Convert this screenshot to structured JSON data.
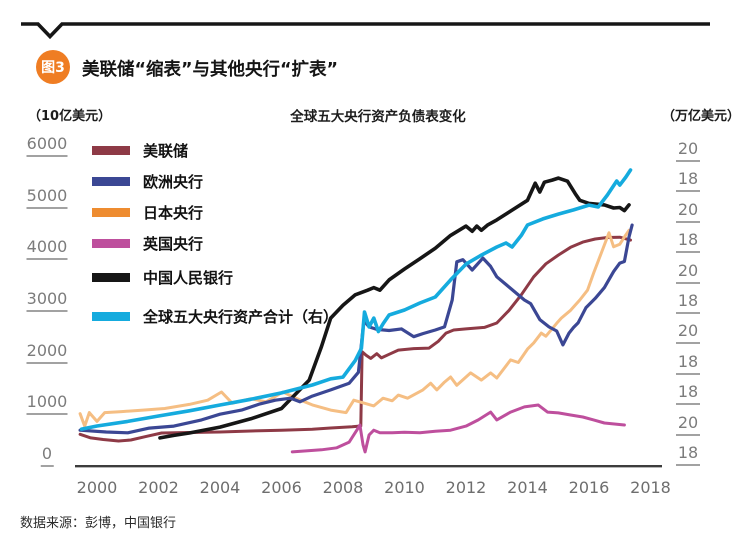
{
  "header": {
    "badge": "图3",
    "title": "美联储“缩表”与其他央行“扩表”"
  },
  "source": "数据来源：彭博，中国银行",
  "colors": {
    "badge_orange": "#EF7D23",
    "rule_black": "#161616",
    "axis_line": "#3c3c3c",
    "axis_text": "#7c7c7c",
    "xaxis_text": "#6e6e6e",
    "tick_underline": "#a2a2a2"
  },
  "chart_data": {
    "type": "line",
    "title": "全球五大央行资产负债表变化",
    "left_axis": {
      "unit": "（10亿美元）",
      "ticks": [
        6000,
        5000,
        4000,
        3000,
        2000,
        1000,
        0
      ],
      "range": [
        0,
        6000
      ]
    },
    "right_axis": {
      "unit": "（万亿美元）",
      "tick_labels": [
        "20",
        "18",
        "20",
        "18",
        "20",
        "18",
        "20",
        "18",
        "18",
        "20",
        "18"
      ],
      "range": [
        0,
        20
      ]
    },
    "x_axis": {
      "ticks": [
        2000,
        2002,
        2004,
        2006,
        2008,
        2010,
        2012,
        2014,
        2016,
        2018
      ],
      "range": [
        1999.4,
        2018.5
      ]
    },
    "grid": false,
    "legend_position": "upper-left",
    "series": [
      {
        "name": "美联储",
        "color": "#8E3A46",
        "legend_color": "#8E3A46",
        "axis": "left",
        "width": 3,
        "points": [
          [
            1999.45,
            400
          ],
          [
            1999.8,
            330
          ],
          [
            2000.2,
            300
          ],
          [
            2000.7,
            271
          ],
          [
            2001.1,
            290
          ],
          [
            2001.6,
            360
          ],
          [
            2002.1,
            425
          ],
          [
            2003,
            435
          ],
          [
            2004,
            445
          ],
          [
            2005,
            464
          ],
          [
            2006,
            480
          ],
          [
            2007,
            500
          ],
          [
            2007.6,
            522
          ],
          [
            2008.3,
            545
          ],
          [
            2008.58,
            561
          ],
          [
            2008.62,
            2000
          ],
          [
            2008.75,
            1930
          ],
          [
            2008.9,
            1870
          ],
          [
            2009.1,
            1960
          ],
          [
            2009.25,
            1880
          ],
          [
            2009.5,
            1950
          ],
          [
            2009.8,
            2030
          ],
          [
            2010.3,
            2060
          ],
          [
            2010.8,
            2070
          ],
          [
            2011.1,
            2200
          ],
          [
            2011.35,
            2360
          ],
          [
            2011.6,
            2420
          ],
          [
            2012,
            2440
          ],
          [
            2012.6,
            2470
          ],
          [
            2013,
            2555
          ],
          [
            2013.4,
            2800
          ],
          [
            2013.8,
            3100
          ],
          [
            2014.2,
            3450
          ],
          [
            2014.6,
            3700
          ],
          [
            2015,
            3870
          ],
          [
            2015.4,
            4020
          ],
          [
            2015.8,
            4120
          ],
          [
            2016.2,
            4180
          ],
          [
            2016.6,
            4210
          ],
          [
            2017,
            4215
          ],
          [
            2017.35,
            4160
          ]
        ]
      },
      {
        "name": "欧洲央行",
        "color": "#3B4794",
        "legend_color": "#3B4794",
        "axis": "left",
        "width": 3.2,
        "points": [
          [
            1999.45,
            480
          ],
          [
            2000.3,
            445
          ],
          [
            2001,
            430
          ],
          [
            2001.7,
            520
          ],
          [
            2002.5,
            560
          ],
          [
            2003.4,
            680
          ],
          [
            2004,
            790
          ],
          [
            2004.7,
            870
          ],
          [
            2005.3,
            990
          ],
          [
            2005.8,
            1060
          ],
          [
            2006.3,
            1100
          ],
          [
            2006.6,
            1030
          ],
          [
            2007,
            1140
          ],
          [
            2007.6,
            1260
          ],
          [
            2008.2,
            1390
          ],
          [
            2008.5,
            1600
          ],
          [
            2008.68,
            2600
          ],
          [
            2008.85,
            2480
          ],
          [
            2009.1,
            2430
          ],
          [
            2009.5,
            2410
          ],
          [
            2009.9,
            2440
          ],
          [
            2010.3,
            2290
          ],
          [
            2010.6,
            2350
          ],
          [
            2011,
            2420
          ],
          [
            2011.3,
            2480
          ],
          [
            2011.55,
            3000
          ],
          [
            2011.7,
            3740
          ],
          [
            2011.9,
            3780
          ],
          [
            2012.2,
            3580
          ],
          [
            2012.55,
            3810
          ],
          [
            2012.8,
            3650
          ],
          [
            2013,
            3450
          ],
          [
            2013.4,
            3250
          ],
          [
            2013.9,
            3000
          ],
          [
            2014.1,
            2930
          ],
          [
            2014.4,
            2620
          ],
          [
            2014.7,
            2480
          ],
          [
            2014.95,
            2400
          ],
          [
            2015.15,
            2130
          ],
          [
            2015.35,
            2360
          ],
          [
            2015.5,
            2470
          ],
          [
            2015.65,
            2560
          ],
          [
            2015.9,
            2850
          ],
          [
            2016.2,
            3030
          ],
          [
            2016.5,
            3240
          ],
          [
            2016.8,
            3550
          ],
          [
            2017,
            3715
          ],
          [
            2017.15,
            3745
          ],
          [
            2017.3,
            4220
          ],
          [
            2017.4,
            4450
          ]
        ]
      },
      {
        "name": "日本央行",
        "color": "#F5BE83",
        "legend_color": "#EE8C30",
        "axis": "left",
        "width": 3,
        "points": [
          [
            1999.45,
            800
          ],
          [
            1999.6,
            560
          ],
          [
            1999.75,
            820
          ],
          [
            2000,
            650
          ],
          [
            2000.25,
            820
          ],
          [
            2000.8,
            840
          ],
          [
            2001.5,
            870
          ],
          [
            2002.2,
            900
          ],
          [
            2003,
            980
          ],
          [
            2003.6,
            1060
          ],
          [
            2004.05,
            1220
          ],
          [
            2004.4,
            1000
          ],
          [
            2005,
            1090
          ],
          [
            2005.5,
            1030
          ],
          [
            2006.05,
            1220
          ],
          [
            2006.5,
            1090
          ],
          [
            2007,
            970
          ],
          [
            2007.6,
            870
          ],
          [
            2008.1,
            820
          ],
          [
            2008.35,
            1060
          ],
          [
            2008.65,
            1010
          ],
          [
            2009,
            950
          ],
          [
            2009.3,
            1100
          ],
          [
            2009.6,
            1050
          ],
          [
            2009.8,
            1160
          ],
          [
            2010.1,
            1100
          ],
          [
            2010.6,
            1260
          ],
          [
            2010.85,
            1390
          ],
          [
            2011.05,
            1260
          ],
          [
            2011.3,
            1410
          ],
          [
            2011.5,
            1510
          ],
          [
            2011.7,
            1350
          ],
          [
            2012.15,
            1590
          ],
          [
            2012.5,
            1450
          ],
          [
            2012.8,
            1590
          ],
          [
            2013,
            1490
          ],
          [
            2013.45,
            1840
          ],
          [
            2013.7,
            1790
          ],
          [
            2014,
            2050
          ],
          [
            2014.2,
            2170
          ],
          [
            2014.45,
            2360
          ],
          [
            2014.6,
            2300
          ],
          [
            2014.95,
            2550
          ],
          [
            2015.1,
            2650
          ],
          [
            2015.4,
            2800
          ],
          [
            2015.7,
            3000
          ],
          [
            2015.95,
            3190
          ],
          [
            2016.15,
            3520
          ],
          [
            2016.4,
            3910
          ],
          [
            2016.65,
            4300
          ],
          [
            2016.8,
            4030
          ],
          [
            2017,
            4080
          ],
          [
            2017.15,
            4220
          ],
          [
            2017.3,
            4350
          ]
        ]
      },
      {
        "name": "英国央行",
        "color": "#BE4F9D",
        "legend_color": "#BE4F9D",
        "axis": "left",
        "width": 3,
        "points": [
          [
            2006.35,
            60
          ],
          [
            2006.8,
            80
          ],
          [
            2007.3,
            100
          ],
          [
            2007.8,
            140
          ],
          [
            2008.2,
            250
          ],
          [
            2008.45,
            480
          ],
          [
            2008.55,
            580
          ],
          [
            2008.65,
            200
          ],
          [
            2008.72,
            60
          ],
          [
            2008.85,
            390
          ],
          [
            2009,
            480
          ],
          [
            2009.2,
            430
          ],
          [
            2009.6,
            430
          ],
          [
            2010,
            440
          ],
          [
            2010.5,
            430
          ],
          [
            2011,
            460
          ],
          [
            2011.5,
            480
          ],
          [
            2012,
            560
          ],
          [
            2012.4,
            680
          ],
          [
            2012.8,
            830
          ],
          [
            2013,
            680
          ],
          [
            2013.45,
            830
          ],
          [
            2013.9,
            930
          ],
          [
            2014.35,
            968
          ],
          [
            2014.65,
            830
          ],
          [
            2015,
            815
          ],
          [
            2015.4,
            775
          ],
          [
            2015.8,
            735
          ],
          [
            2016.15,
            680
          ],
          [
            2016.5,
            620
          ],
          [
            2017.15,
            580
          ]
        ]
      },
      {
        "name": "中国人民银行",
        "color": "#161616",
        "legend_color": "#161616",
        "axis": "left",
        "width": 3.6,
        "points": [
          [
            2002.05,
            330
          ],
          [
            2002.5,
            380
          ],
          [
            2003,
            425
          ],
          [
            2004,
            540
          ],
          [
            2005,
            700
          ],
          [
            2006,
            900
          ],
          [
            2006.9,
            1450
          ],
          [
            2007.3,
            2100
          ],
          [
            2007.6,
            2650
          ],
          [
            2008,
            2900
          ],
          [
            2008.4,
            3100
          ],
          [
            2008.8,
            3190
          ],
          [
            2009,
            3240
          ],
          [
            2009.2,
            3190
          ],
          [
            2009.5,
            3390
          ],
          [
            2010,
            3600
          ],
          [
            2010.5,
            3800
          ],
          [
            2011,
            4000
          ],
          [
            2011.5,
            4250
          ],
          [
            2012,
            4430
          ],
          [
            2012.2,
            4330
          ],
          [
            2012.35,
            4430
          ],
          [
            2012.5,
            4350
          ],
          [
            2012.7,
            4450
          ],
          [
            2013,
            4550
          ],
          [
            2013.5,
            4740
          ],
          [
            2014,
            4930
          ],
          [
            2014.25,
            5260
          ],
          [
            2014.4,
            5090
          ],
          [
            2014.55,
            5280
          ],
          [
            2014.8,
            5320
          ],
          [
            2015,
            5360
          ],
          [
            2015.3,
            5300
          ],
          [
            2015.55,
            5060
          ],
          [
            2015.7,
            4930
          ],
          [
            2016,
            4870
          ],
          [
            2016.5,
            4840
          ],
          [
            2016.8,
            4780
          ],
          [
            2017,
            4790
          ],
          [
            2017.15,
            4730
          ],
          [
            2017.3,
            4840
          ]
        ]
      },
      {
        "name": "全球五大央行资产合计（右）",
        "color": "#15ABDE",
        "legend_color": "#15ABDE",
        "axis": "right",
        "width": 3.6,
        "points": [
          [
            1999.5,
            1.7
          ],
          [
            2000,
            1.9
          ],
          [
            2001,
            2.2
          ],
          [
            2002,
            2.56
          ],
          [
            2003,
            2.9
          ],
          [
            2004,
            3.28
          ],
          [
            2005,
            3.65
          ],
          [
            2006,
            4.07
          ],
          [
            2007,
            4.59
          ],
          [
            2007.6,
            5.0
          ],
          [
            2008,
            5.11
          ],
          [
            2008.4,
            6.2
          ],
          [
            2008.6,
            7.0
          ],
          [
            2008.7,
            9.38
          ],
          [
            2008.85,
            8.4
          ],
          [
            2009,
            8.98
          ],
          [
            2009.15,
            8.1
          ],
          [
            2009.3,
            8.6
          ],
          [
            2009.5,
            9.18
          ],
          [
            2010,
            9.51
          ],
          [
            2010.5,
            9.97
          ],
          [
            2011,
            10.36
          ],
          [
            2011.5,
            11.48
          ],
          [
            2012,
            12.52
          ],
          [
            2012.5,
            13.11
          ],
          [
            2013,
            13.64
          ],
          [
            2013.3,
            13.9
          ],
          [
            2013.5,
            13.64
          ],
          [
            2013.8,
            14.4
          ],
          [
            2014,
            15.08
          ],
          [
            2014.5,
            15.48
          ],
          [
            2015,
            15.8
          ],
          [
            2015.5,
            16.07
          ],
          [
            2016,
            16.39
          ],
          [
            2016.3,
            16.26
          ],
          [
            2016.6,
            17.05
          ],
          [
            2016.9,
            17.97
          ],
          [
            2017,
            17.7
          ],
          [
            2017.2,
            18.23
          ],
          [
            2017.35,
            18.69
          ]
        ]
      }
    ]
  }
}
